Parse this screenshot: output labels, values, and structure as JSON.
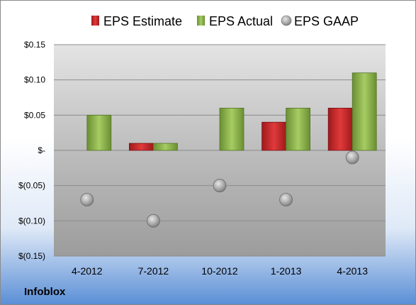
{
  "company": "Infoblox",
  "chart_data": {
    "type": "bar",
    "categories": [
      "4-2012",
      "7-2012",
      "10-2012",
      "1-2013",
      "4-2013"
    ],
    "series": [
      {
        "name": "EPS Estimate",
        "kind": "bar",
        "color": "#c0282c",
        "values": [
          null,
          0.01,
          null,
          0.04,
          0.06
        ]
      },
      {
        "name": "EPS Actual",
        "kind": "bar",
        "color": "#8ab34a",
        "values": [
          0.05,
          0.01,
          0.06,
          0.06,
          0.11
        ]
      },
      {
        "name": "EPS GAAP",
        "kind": "marker",
        "color": "#9a9a9a",
        "values": [
          -0.07,
          -0.1,
          -0.05,
          -0.07,
          -0.01
        ]
      }
    ],
    "y_ticks": [
      {
        "value": 0.15,
        "label": "$0.15"
      },
      {
        "value": 0.1,
        "label": "$0.10"
      },
      {
        "value": 0.05,
        "label": "$0.05"
      },
      {
        "value": 0,
        "label": "$-"
      },
      {
        "value": -0.05,
        "label": "$(0.05)"
      },
      {
        "value": -0.1,
        "label": "$(0.10)"
      },
      {
        "value": -0.15,
        "label": "$(0.15)"
      }
    ],
    "ylim": [
      -0.15,
      0.15
    ],
    "grid": true,
    "legend_position": "top"
  }
}
